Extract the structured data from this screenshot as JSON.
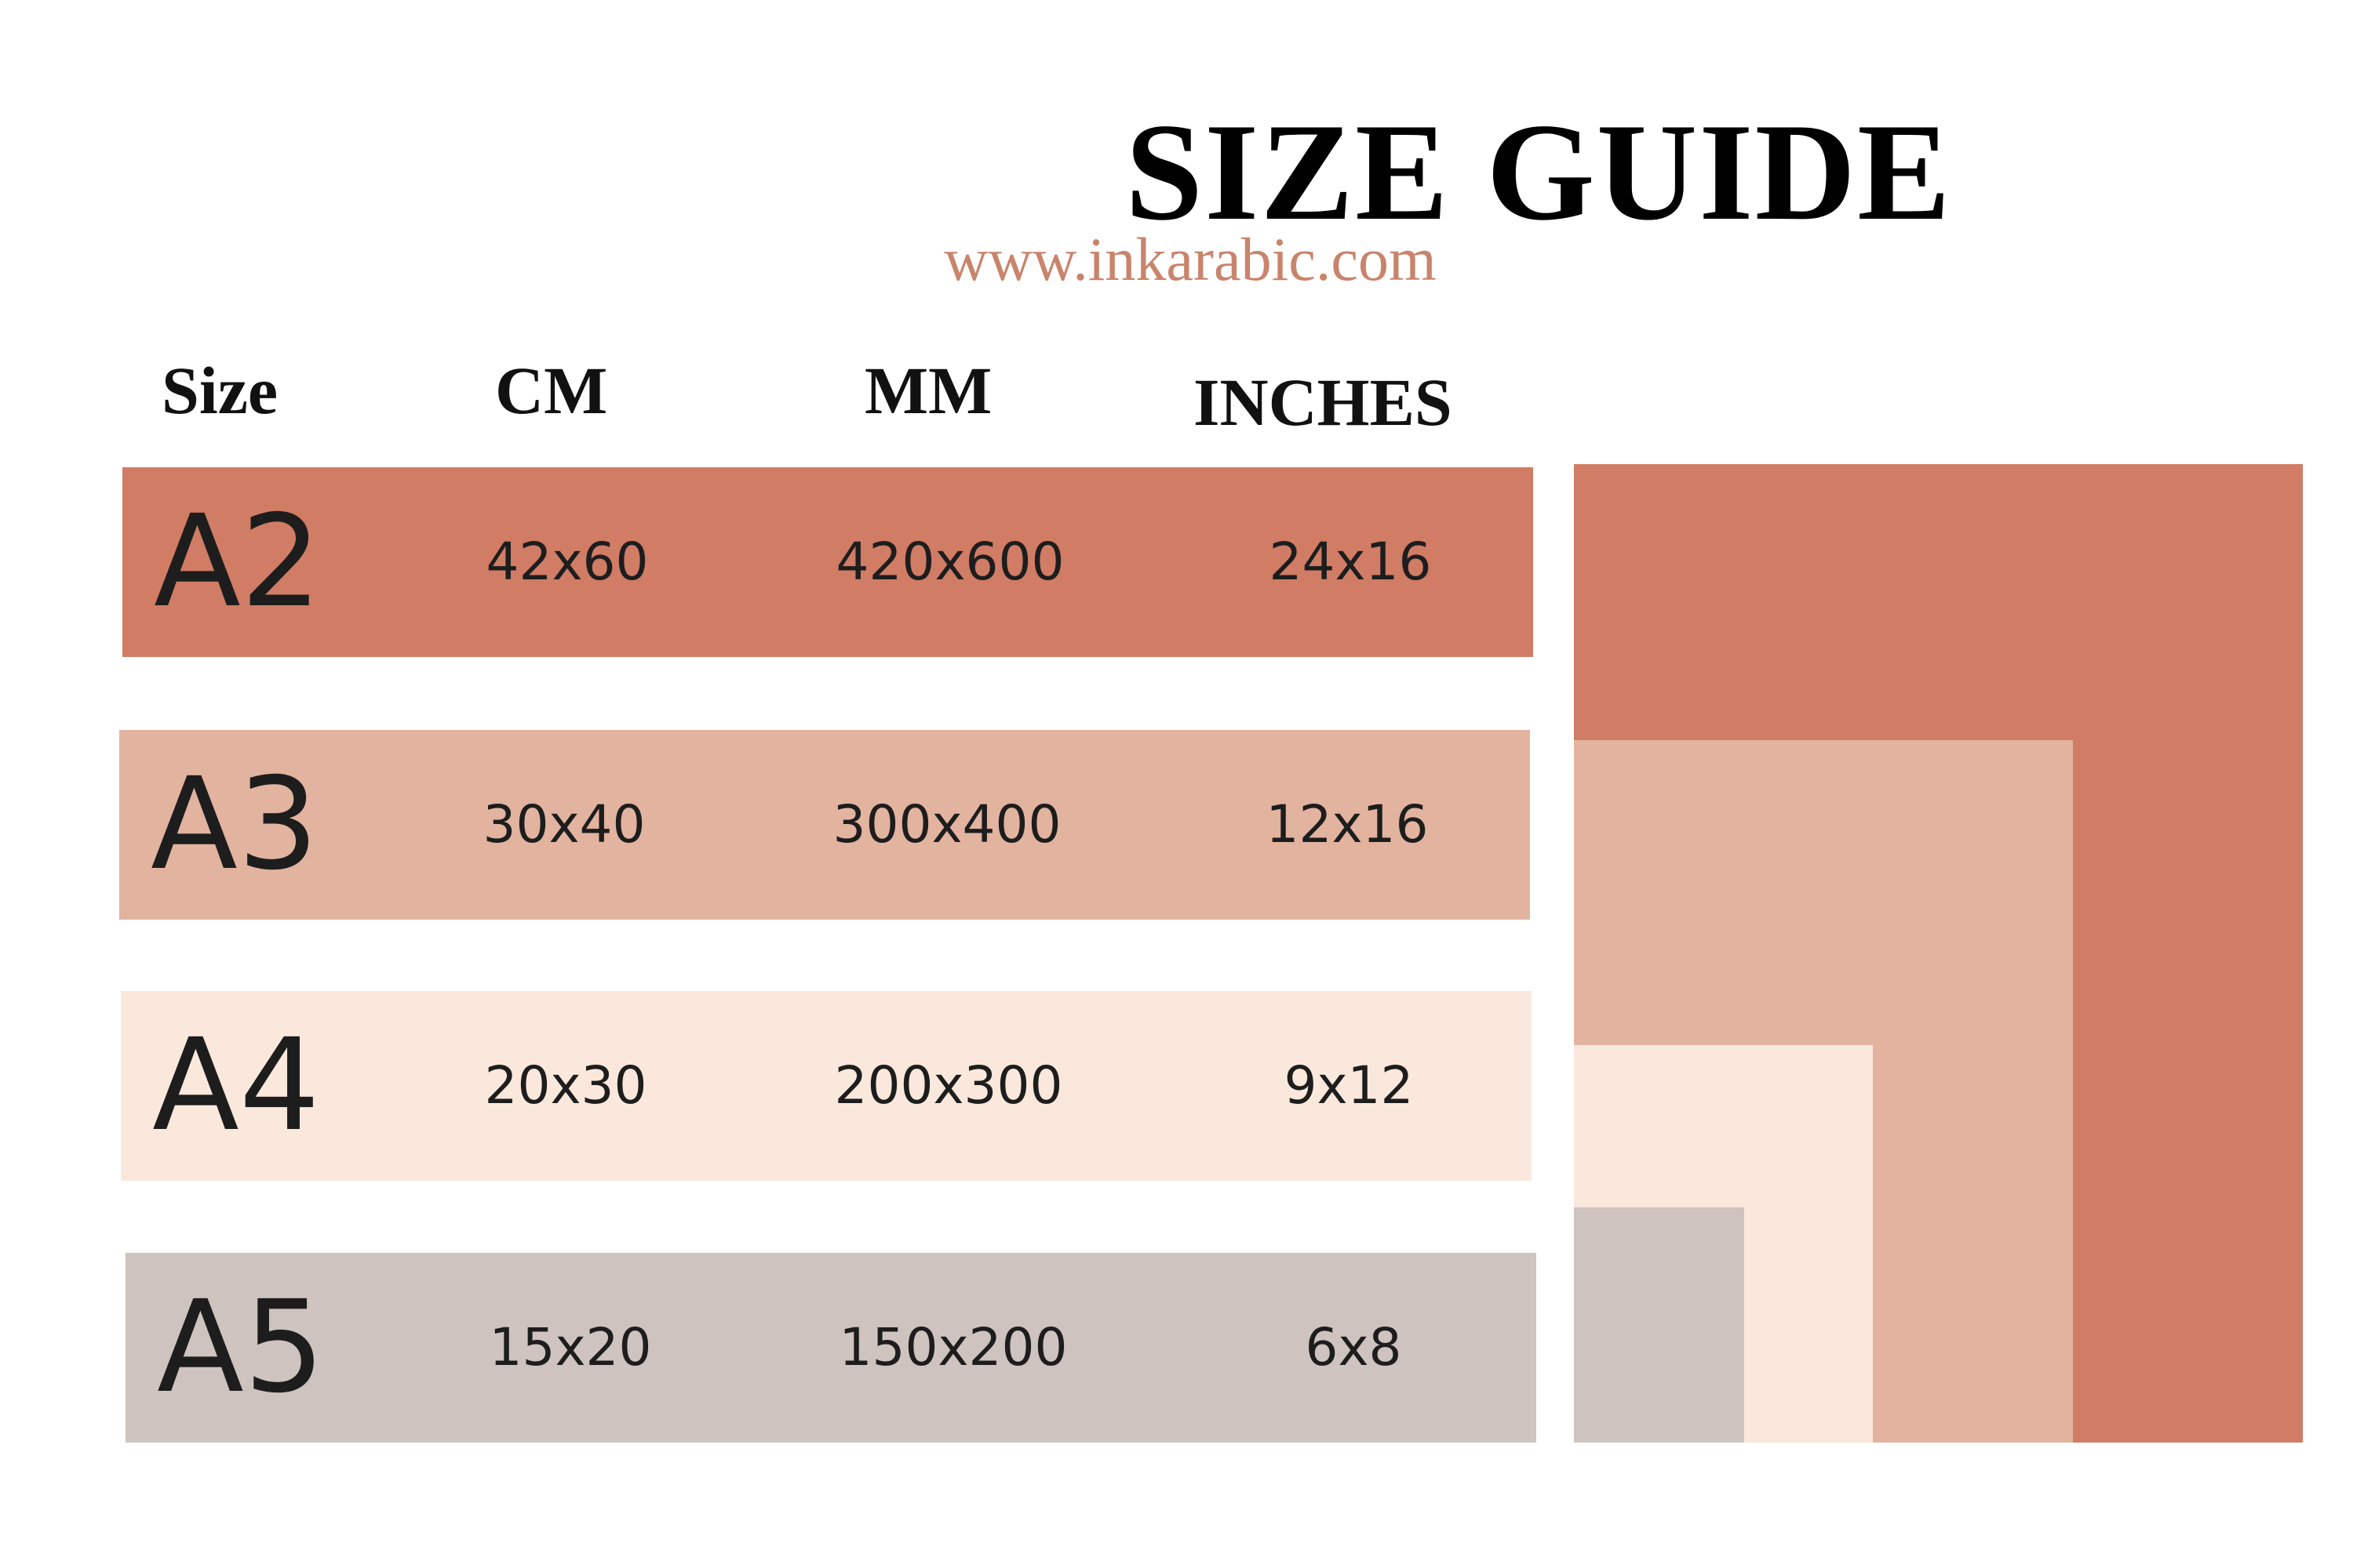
{
  "title": "SIZE GUIDE",
  "website": "www.inkarabic.com",
  "headers": {
    "size": "Size",
    "cm": "CM",
    "mm": "MM",
    "inches": "INCHES"
  },
  "rows": [
    {
      "size": "A2",
      "cm": "42x60",
      "mm": "420x600",
      "inches": "24x16",
      "color": "#d17c65"
    },
    {
      "size": "A3",
      "cm": "30x40",
      "mm": "300x400",
      "inches": "12x16",
      "color": "#e2b39f"
    },
    {
      "size": "A4",
      "cm": "20x30",
      "mm": "200x300",
      "inches": "9x12",
      "color": "#fbe8dc"
    },
    {
      "size": "A5",
      "cm": "15x20",
      "mm": "150x200",
      "inches": "6x8",
      "color": "#cec3be"
    }
  ]
}
